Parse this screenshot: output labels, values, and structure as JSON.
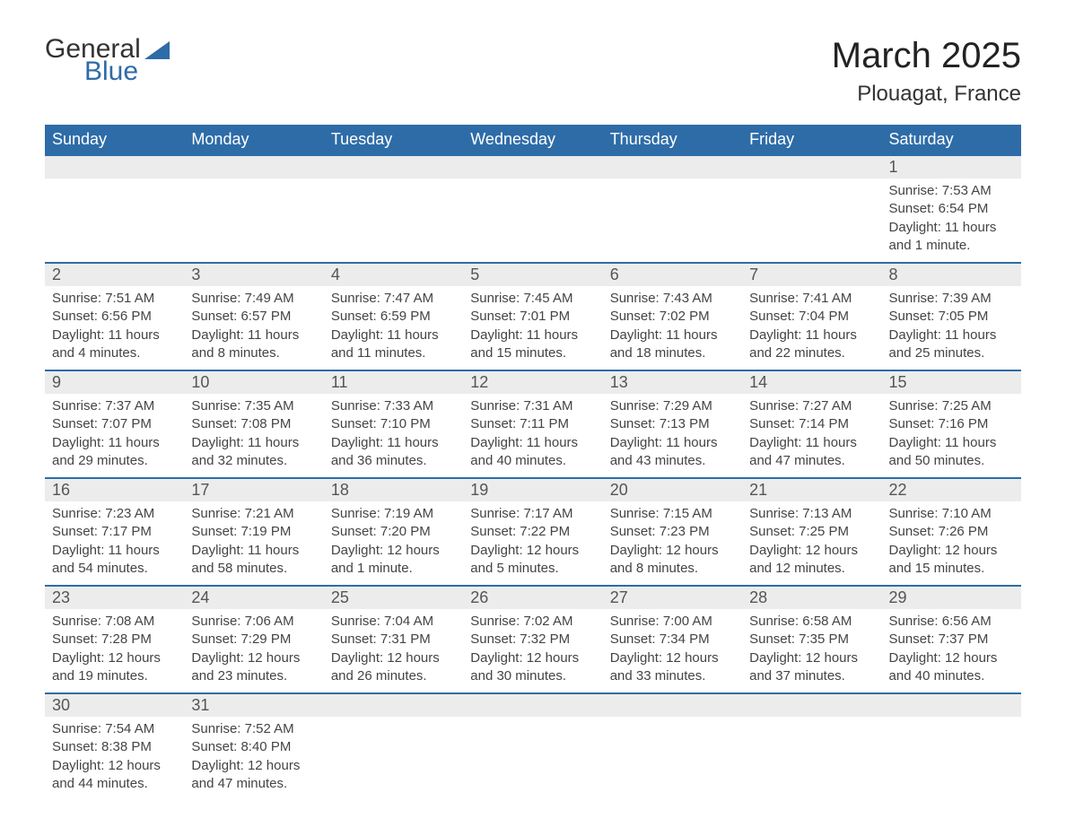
{
  "logo": {
    "word1": "General",
    "word2": "Blue",
    "color1": "#333333",
    "color2": "#2e6ca8"
  },
  "title": "March 2025",
  "location": "Plouagat, France",
  "colors": {
    "header_bg": "#2e6ca8",
    "header_text": "#ffffff",
    "daynum_bg": "#ececec",
    "row_divider": "#2e6ca8",
    "text": "#444444",
    "background": "#ffffff"
  },
  "fonts": {
    "title_size": 40,
    "location_size": 24,
    "header_size": 18,
    "body_size": 15
  },
  "day_headers": [
    "Sunday",
    "Monday",
    "Tuesday",
    "Wednesday",
    "Thursday",
    "Friday",
    "Saturday"
  ],
  "weeks": [
    [
      null,
      null,
      null,
      null,
      null,
      null,
      {
        "n": "1",
        "sr": "Sunrise: 7:53 AM",
        "ss": "Sunset: 6:54 PM",
        "d1": "Daylight: 11 hours",
        "d2": "and 1 minute."
      }
    ],
    [
      {
        "n": "2",
        "sr": "Sunrise: 7:51 AM",
        "ss": "Sunset: 6:56 PM",
        "d1": "Daylight: 11 hours",
        "d2": "and 4 minutes."
      },
      {
        "n": "3",
        "sr": "Sunrise: 7:49 AM",
        "ss": "Sunset: 6:57 PM",
        "d1": "Daylight: 11 hours",
        "d2": "and 8 minutes."
      },
      {
        "n": "4",
        "sr": "Sunrise: 7:47 AM",
        "ss": "Sunset: 6:59 PM",
        "d1": "Daylight: 11 hours",
        "d2": "and 11 minutes."
      },
      {
        "n": "5",
        "sr": "Sunrise: 7:45 AM",
        "ss": "Sunset: 7:01 PM",
        "d1": "Daylight: 11 hours",
        "d2": "and 15 minutes."
      },
      {
        "n": "6",
        "sr": "Sunrise: 7:43 AM",
        "ss": "Sunset: 7:02 PM",
        "d1": "Daylight: 11 hours",
        "d2": "and 18 minutes."
      },
      {
        "n": "7",
        "sr": "Sunrise: 7:41 AM",
        "ss": "Sunset: 7:04 PM",
        "d1": "Daylight: 11 hours",
        "d2": "and 22 minutes."
      },
      {
        "n": "8",
        "sr": "Sunrise: 7:39 AM",
        "ss": "Sunset: 7:05 PM",
        "d1": "Daylight: 11 hours",
        "d2": "and 25 minutes."
      }
    ],
    [
      {
        "n": "9",
        "sr": "Sunrise: 7:37 AM",
        "ss": "Sunset: 7:07 PM",
        "d1": "Daylight: 11 hours",
        "d2": "and 29 minutes."
      },
      {
        "n": "10",
        "sr": "Sunrise: 7:35 AM",
        "ss": "Sunset: 7:08 PM",
        "d1": "Daylight: 11 hours",
        "d2": "and 32 minutes."
      },
      {
        "n": "11",
        "sr": "Sunrise: 7:33 AM",
        "ss": "Sunset: 7:10 PM",
        "d1": "Daylight: 11 hours",
        "d2": "and 36 minutes."
      },
      {
        "n": "12",
        "sr": "Sunrise: 7:31 AM",
        "ss": "Sunset: 7:11 PM",
        "d1": "Daylight: 11 hours",
        "d2": "and 40 minutes."
      },
      {
        "n": "13",
        "sr": "Sunrise: 7:29 AM",
        "ss": "Sunset: 7:13 PM",
        "d1": "Daylight: 11 hours",
        "d2": "and 43 minutes."
      },
      {
        "n": "14",
        "sr": "Sunrise: 7:27 AM",
        "ss": "Sunset: 7:14 PM",
        "d1": "Daylight: 11 hours",
        "d2": "and 47 minutes."
      },
      {
        "n": "15",
        "sr": "Sunrise: 7:25 AM",
        "ss": "Sunset: 7:16 PM",
        "d1": "Daylight: 11 hours",
        "d2": "and 50 minutes."
      }
    ],
    [
      {
        "n": "16",
        "sr": "Sunrise: 7:23 AM",
        "ss": "Sunset: 7:17 PM",
        "d1": "Daylight: 11 hours",
        "d2": "and 54 minutes."
      },
      {
        "n": "17",
        "sr": "Sunrise: 7:21 AM",
        "ss": "Sunset: 7:19 PM",
        "d1": "Daylight: 11 hours",
        "d2": "and 58 minutes."
      },
      {
        "n": "18",
        "sr": "Sunrise: 7:19 AM",
        "ss": "Sunset: 7:20 PM",
        "d1": "Daylight: 12 hours",
        "d2": "and 1 minute."
      },
      {
        "n": "19",
        "sr": "Sunrise: 7:17 AM",
        "ss": "Sunset: 7:22 PM",
        "d1": "Daylight: 12 hours",
        "d2": "and 5 minutes."
      },
      {
        "n": "20",
        "sr": "Sunrise: 7:15 AM",
        "ss": "Sunset: 7:23 PM",
        "d1": "Daylight: 12 hours",
        "d2": "and 8 minutes."
      },
      {
        "n": "21",
        "sr": "Sunrise: 7:13 AM",
        "ss": "Sunset: 7:25 PM",
        "d1": "Daylight: 12 hours",
        "d2": "and 12 minutes."
      },
      {
        "n": "22",
        "sr": "Sunrise: 7:10 AM",
        "ss": "Sunset: 7:26 PM",
        "d1": "Daylight: 12 hours",
        "d2": "and 15 minutes."
      }
    ],
    [
      {
        "n": "23",
        "sr": "Sunrise: 7:08 AM",
        "ss": "Sunset: 7:28 PM",
        "d1": "Daylight: 12 hours",
        "d2": "and 19 minutes."
      },
      {
        "n": "24",
        "sr": "Sunrise: 7:06 AM",
        "ss": "Sunset: 7:29 PM",
        "d1": "Daylight: 12 hours",
        "d2": "and 23 minutes."
      },
      {
        "n": "25",
        "sr": "Sunrise: 7:04 AM",
        "ss": "Sunset: 7:31 PM",
        "d1": "Daylight: 12 hours",
        "d2": "and 26 minutes."
      },
      {
        "n": "26",
        "sr": "Sunrise: 7:02 AM",
        "ss": "Sunset: 7:32 PM",
        "d1": "Daylight: 12 hours",
        "d2": "and 30 minutes."
      },
      {
        "n": "27",
        "sr": "Sunrise: 7:00 AM",
        "ss": "Sunset: 7:34 PM",
        "d1": "Daylight: 12 hours",
        "d2": "and 33 minutes."
      },
      {
        "n": "28",
        "sr": "Sunrise: 6:58 AM",
        "ss": "Sunset: 7:35 PM",
        "d1": "Daylight: 12 hours",
        "d2": "and 37 minutes."
      },
      {
        "n": "29",
        "sr": "Sunrise: 6:56 AM",
        "ss": "Sunset: 7:37 PM",
        "d1": "Daylight: 12 hours",
        "d2": "and 40 minutes."
      }
    ],
    [
      {
        "n": "30",
        "sr": "Sunrise: 7:54 AM",
        "ss": "Sunset: 8:38 PM",
        "d1": "Daylight: 12 hours",
        "d2": "and 44 minutes."
      },
      {
        "n": "31",
        "sr": "Sunrise: 7:52 AM",
        "ss": "Sunset: 8:40 PM",
        "d1": "Daylight: 12 hours",
        "d2": "and 47 minutes."
      },
      null,
      null,
      null,
      null,
      null
    ]
  ]
}
